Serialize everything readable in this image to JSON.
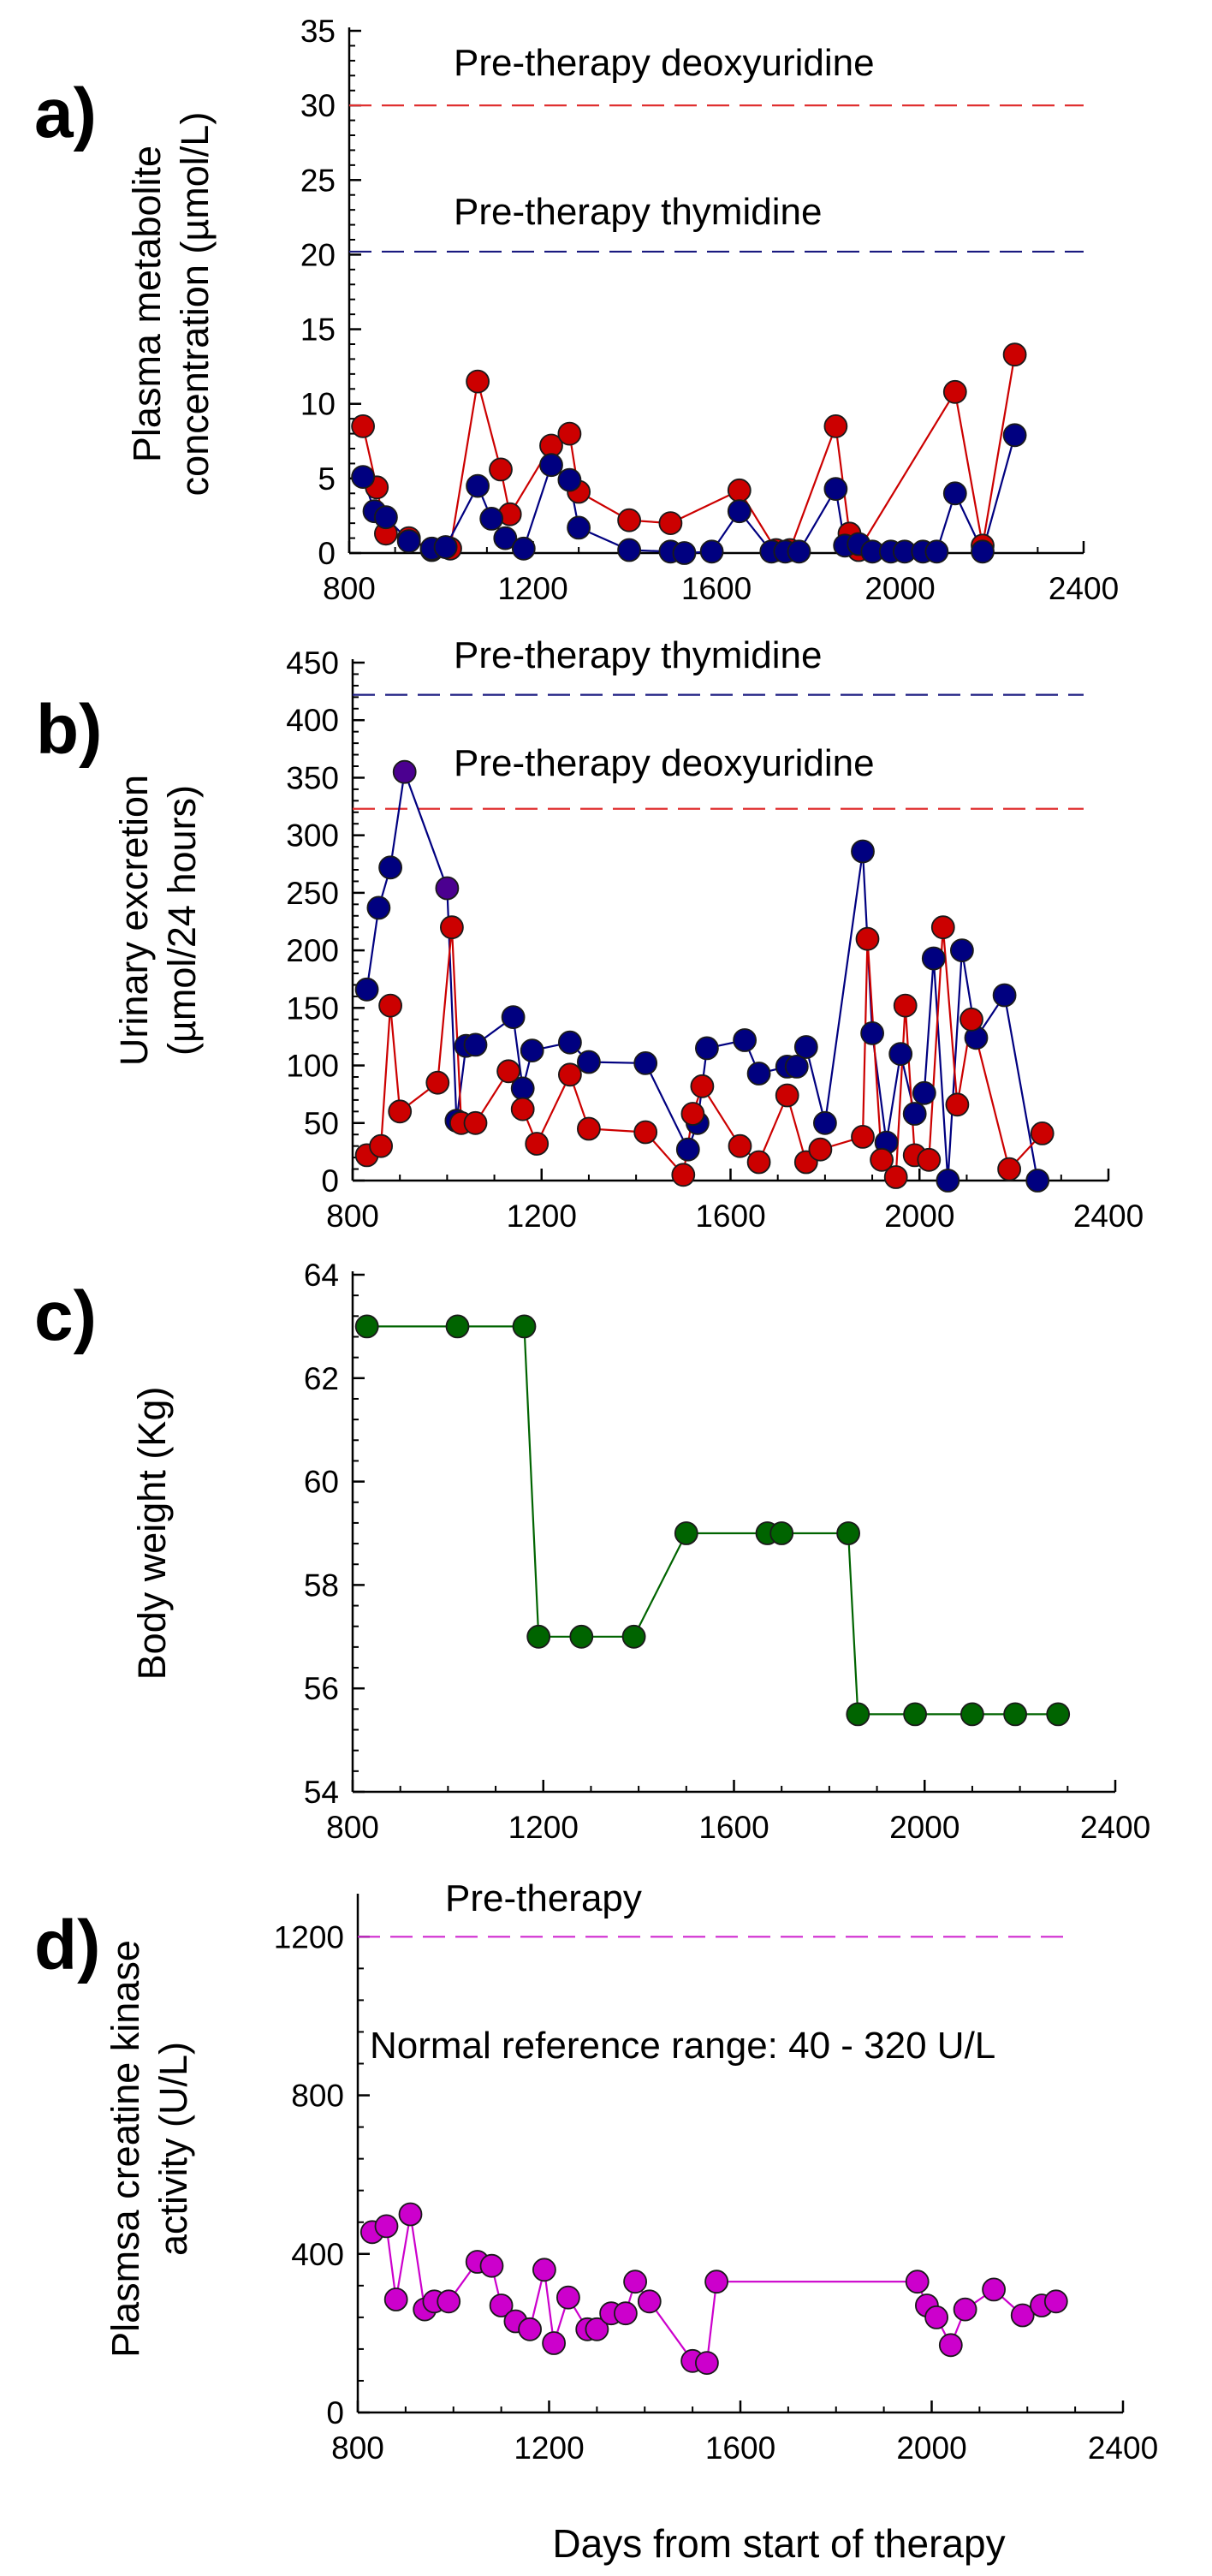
{
  "chart_data": [
    {
      "panel": "a)",
      "type": "line",
      "ylabel_lines": [
        "Plasma metabolite",
        "concentration (µmol/L)"
      ],
      "xlim": [
        800,
        2400
      ],
      "ylim": [
        0,
        35
      ],
      "xticks": [
        800,
        1200,
        1600,
        2000,
        2400
      ],
      "yticks": [
        0,
        5,
        10,
        15,
        20,
        25,
        30,
        35
      ],
      "reference_lines": [
        {
          "label": "Pre-therapy deoxyuridine",
          "value": 30,
          "color": "#e03030"
        },
        {
          "label": "Pre-therapy thymidine",
          "value": 20.2,
          "color": "#1a1a80"
        }
      ],
      "series": [
        {
          "name": "deoxyuridine",
          "color": "#cc0000",
          "x": [
            830,
            860,
            880,
            930,
            980,
            1020,
            1080,
            1130,
            1150,
            1240,
            1280,
            1300,
            1410,
            1500,
            1650,
            1730,
            1760,
            1860,
            1890,
            1910,
            2120,
            2180,
            2250
          ],
          "y": [
            8.5,
            4.4,
            1.3,
            1.0,
            0.2,
            0.3,
            11.5,
            5.6,
            2.6,
            7.2,
            8.0,
            4.1,
            2.2,
            2.0,
            4.2,
            0.2,
            0.2,
            8.5,
            1.3,
            0.2,
            10.8,
            0.5,
            13.3
          ]
        },
        {
          "name": "thymidine",
          "color": "#000080",
          "x": [
            830,
            855,
            880,
            930,
            980,
            1010,
            1080,
            1110,
            1140,
            1180,
            1240,
            1280,
            1300,
            1410,
            1500,
            1530,
            1590,
            1650,
            1720,
            1750,
            1780,
            1860,
            1880,
            1910,
            1940,
            1980,
            2010,
            2050,
            2080,
            2120,
            2180,
            2250
          ],
          "y": [
            5.1,
            2.8,
            2.4,
            0.8,
            0.3,
            0.4,
            4.5,
            2.3,
            1.0,
            0.3,
            5.9,
            4.9,
            1.7,
            0.2,
            0.1,
            0.0,
            0.1,
            2.8,
            0.1,
            0.1,
            0.1,
            4.3,
            0.5,
            0.6,
            0.1,
            0.1,
            0.1,
            0.1,
            0.1,
            4.0,
            0.1,
            7.9
          ]
        }
      ]
    },
    {
      "panel": "b)",
      "type": "line",
      "ylabel_lines": [
        "Urinary excretion",
        "(µmol/24 hours)"
      ],
      "xlim": [
        800,
        2400
      ],
      "ylim": [
        0,
        450
      ],
      "xticks": [
        800,
        1200,
        1600,
        2000,
        2400
      ],
      "yticks": [
        0,
        50,
        100,
        150,
        200,
        250,
        300,
        350,
        400,
        450
      ],
      "reference_lines": [
        {
          "label": "Pre-therapy thymidine",
          "value": 422,
          "color": "#1a1a80"
        },
        {
          "label": "Pre-therapy deoxyuridine",
          "value": 323,
          "color": "#e03030"
        }
      ],
      "series": [
        {
          "name": "thymidine",
          "color": "#000080",
          "x": [
            830,
            855,
            880,
            910,
            1000,
            1020,
            1040,
            1060,
            1140,
            1160,
            1180,
            1260,
            1300,
            1420,
            1510,
            1530,
            1550,
            1630,
            1660,
            1720,
            1740,
            1760,
            1800,
            1880,
            1900,
            1930,
            1960,
            1990,
            2010,
            2030,
            2060,
            2090,
            2120,
            2180,
            2250
          ],
          "y": [
            166,
            237,
            272,
            355,
            254,
            52,
            117,
            118,
            142,
            80,
            113,
            120,
            103,
            102,
            27,
            50,
            115,
            122,
            93,
            99,
            99,
            116,
            50,
            286,
            128,
            33,
            110,
            58,
            76,
            193,
            0,
            200,
            124,
            161,
            0
          ],
          "note_point_colors": {
            "3": "#4b0090",
            "4": "#4b0090"
          }
        },
        {
          "name": "deoxyuridine",
          "color": "#cc0000",
          "x": [
            830,
            860,
            880,
            900,
            980,
            1010,
            1030,
            1060,
            1130,
            1160,
            1190,
            1260,
            1300,
            1420,
            1500,
            1520,
            1540,
            1620,
            1660,
            1720,
            1760,
            1790,
            1880,
            1890,
            1920,
            1950,
            1970,
            1990,
            2020,
            2050,
            2080,
            2110,
            2190,
            2260
          ],
          "y": [
            22,
            30,
            152,
            60,
            85,
            220,
            50,
            50,
            95,
            62,
            32,
            92,
            45,
            42,
            5,
            58,
            82,
            30,
            16,
            74,
            16,
            27,
            38,
            210,
            18,
            3,
            152,
            22,
            18,
            220,
            66,
            140,
            10,
            41
          ]
        }
      ]
    },
    {
      "panel": "c)",
      "type": "line",
      "ylabel_lines": [
        "Body weight (Kg)"
      ],
      "xlim": [
        800,
        2400
      ],
      "ylim": [
        54,
        64
      ],
      "xticks": [
        800,
        1200,
        1600,
        2000,
        2400
      ],
      "yticks": [
        54,
        56,
        58,
        60,
        62,
        64
      ],
      "reference_lines": [],
      "series": [
        {
          "name": "body weight",
          "color": "#006400",
          "x": [
            830,
            1020,
            1160,
            1190,
            1280,
            1390,
            1500,
            1670,
            1700,
            1840,
            1860,
            1980,
            2100,
            2190,
            2280
          ],
          "y": [
            63,
            63,
            63,
            57,
            57,
            57,
            59,
            59,
            59,
            59,
            55.5,
            55.5,
            55.5,
            55.5,
            55.5
          ]
        }
      ]
    },
    {
      "panel": "d)",
      "type": "line",
      "ylabel_lines": [
        "Plasmsa creatine kinase",
        "activity (U/L)"
      ],
      "xlim": [
        800,
        2400
      ],
      "ylim": [
        0,
        1300
      ],
      "xticks": [
        800,
        1200,
        1600,
        2000,
        2400
      ],
      "yticks": [
        0,
        400,
        800,
        1200
      ],
      "reference_lines": [
        {
          "label": "Pre-therapy",
          "value": 1200,
          "color": "#d02ad0"
        }
      ],
      "annotations": [
        "Normal reference range: 40 - 320 U/L"
      ],
      "xlabel": "Days from start of therapy",
      "series": [
        {
          "name": "creatine kinase",
          "color": "#cc00cc",
          "x": [
            830,
            860,
            880,
            910,
            940,
            960,
            990,
            1050,
            1080,
            1100,
            1130,
            1160,
            1190,
            1210,
            1240,
            1280,
            1300,
            1330,
            1360,
            1380,
            1410,
            1500,
            1530,
            1550,
            1970,
            1990,
            2010,
            2040,
            2070,
            2130,
            2190,
            2230,
            2260
          ],
          "y": [
            455,
            470,
            285,
            500,
            260,
            280,
            280,
            380,
            370,
            270,
            230,
            210,
            360,
            175,
            290,
            210,
            210,
            250,
            250,
            330,
            280,
            130,
            125,
            330,
            330,
            270,
            240,
            170,
            260,
            310,
            245,
            270,
            280
          ]
        }
      ]
    }
  ]
}
